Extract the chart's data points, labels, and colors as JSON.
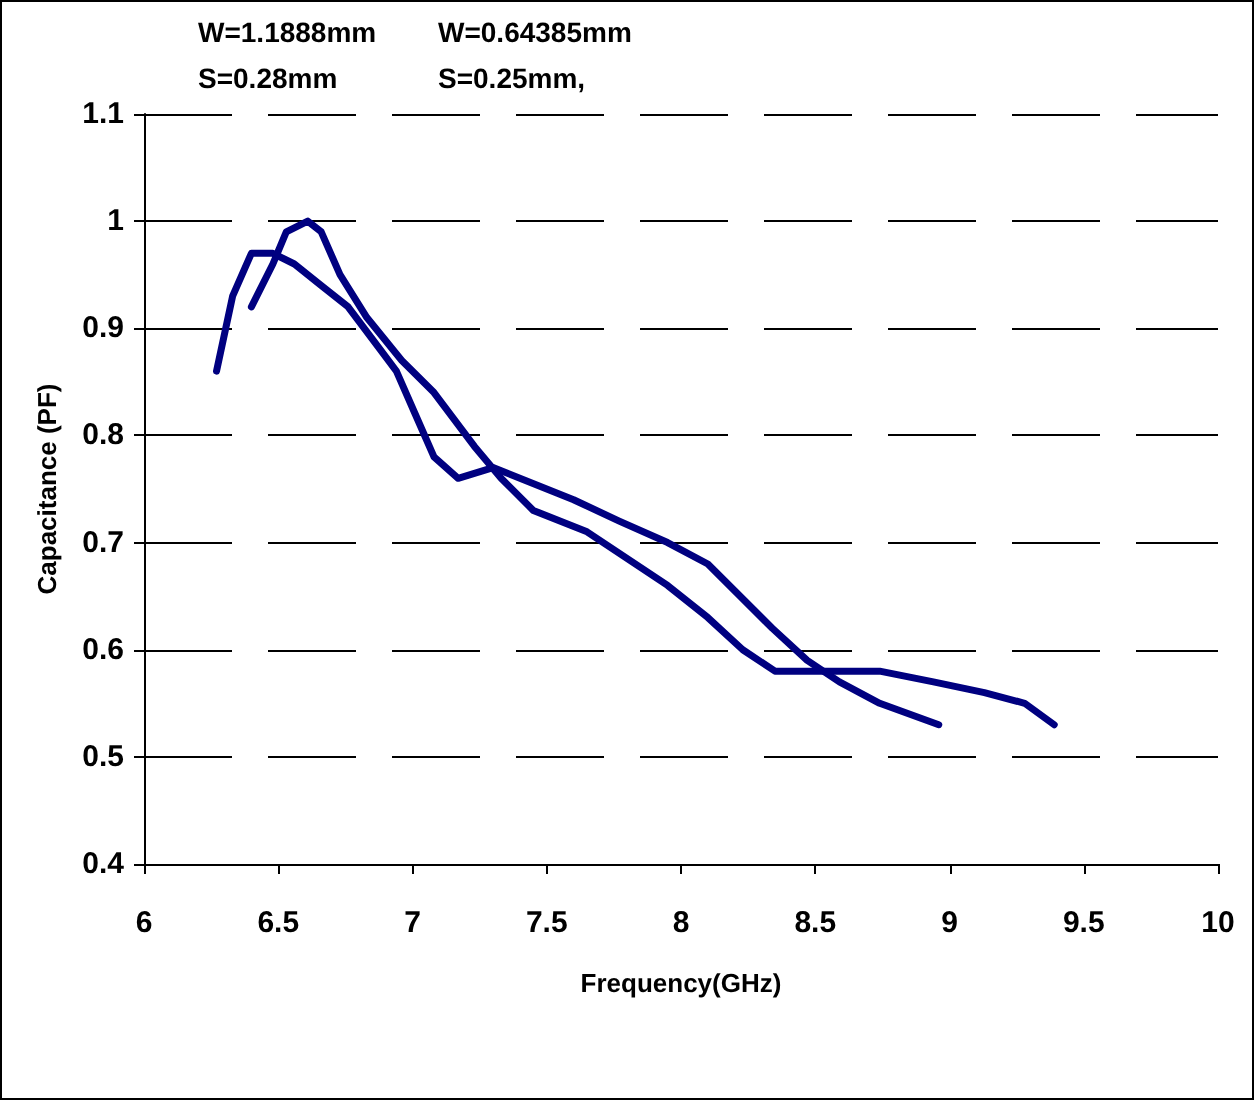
{
  "chart_data": {
    "type": "line",
    "xlabel": "Frequency(GHz)",
    "ylabel": "Capacitance (PF)",
    "annotations": [
      "W=1.1888mm",
      "S=0.28mm",
      "W=0.64385mm",
      "S=0.25mm,"
    ],
    "series": [
      {
        "color": "#000080",
        "x": [
          6.27,
          6.33,
          6.4,
          6.48,
          6.56,
          6.66,
          6.76,
          6.88,
          6.94,
          7.01,
          7.08,
          7.17,
          7.3,
          7.6,
          7.77,
          7.95,
          8.1,
          8.34,
          8.47,
          8.59,
          8.74,
          8.96
        ],
        "values": [
          0.86,
          0.93,
          0.97,
          0.97,
          0.96,
          0.94,
          0.92,
          0.88,
          0.86,
          0.82,
          0.78,
          0.76,
          0.77,
          0.74,
          0.72,
          0.7,
          0.68,
          0.62,
          0.59,
          0.57,
          0.55,
          0.53
        ]
      },
      {
        "color": "#000080",
        "x": [
          6.4,
          6.48,
          6.53,
          6.61,
          6.66,
          6.73,
          6.83,
          6.96,
          7.08,
          7.23,
          7.33,
          7.45,
          7.65,
          7.95,
          8.1,
          8.23,
          8.35,
          8.54,
          8.74,
          8.94,
          9.13,
          9.28,
          9.39
        ],
        "values": [
          0.92,
          0.96,
          0.99,
          1.0,
          0.99,
          0.95,
          0.91,
          0.87,
          0.84,
          0.79,
          0.76,
          0.73,
          0.71,
          0.66,
          0.63,
          0.6,
          0.58,
          0.58,
          0.58,
          0.57,
          0.56,
          0.55,
          0.53
        ]
      }
    ],
    "xlim": [
      6,
      10
    ],
    "xticks": [
      6,
      6.5,
      7,
      7.5,
      8,
      8.5,
      9,
      9.5,
      10
    ],
    "ylim": [
      0.4,
      1.1
    ],
    "yticks": [
      0.4,
      0.5,
      0.6,
      0.7,
      0.8,
      0.9,
      1,
      1.1
    ],
    "grid": "y",
    "marker": "none",
    "line_style": "solid"
  }
}
